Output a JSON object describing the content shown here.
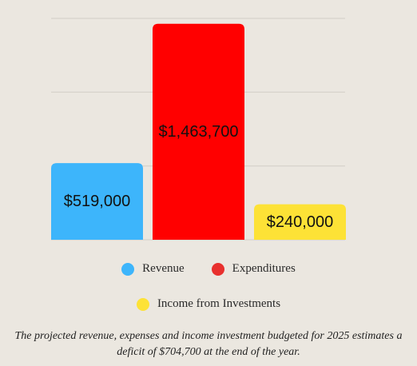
{
  "chart_data": {
    "type": "bar",
    "categories": [
      "Revenue",
      "Expenditures",
      "Income from Investments"
    ],
    "values": [
      519000,
      1463700,
      240000
    ],
    "data_labels": [
      "$519,000",
      "$1,463,700",
      "$240,000"
    ],
    "colors": [
      "#3db5fb",
      "#ff0000",
      "#fde236"
    ],
    "legend_colors": [
      "#3db5fb",
      "#e8302e",
      "#fde236"
    ],
    "ylim": [
      0,
      1500000
    ],
    "grid": true,
    "legend_position": "bottom"
  },
  "caption": "The projected revenue, expenses and income investment budgeted for 2025 estimates a deficit of $704,700 at the end of the year."
}
